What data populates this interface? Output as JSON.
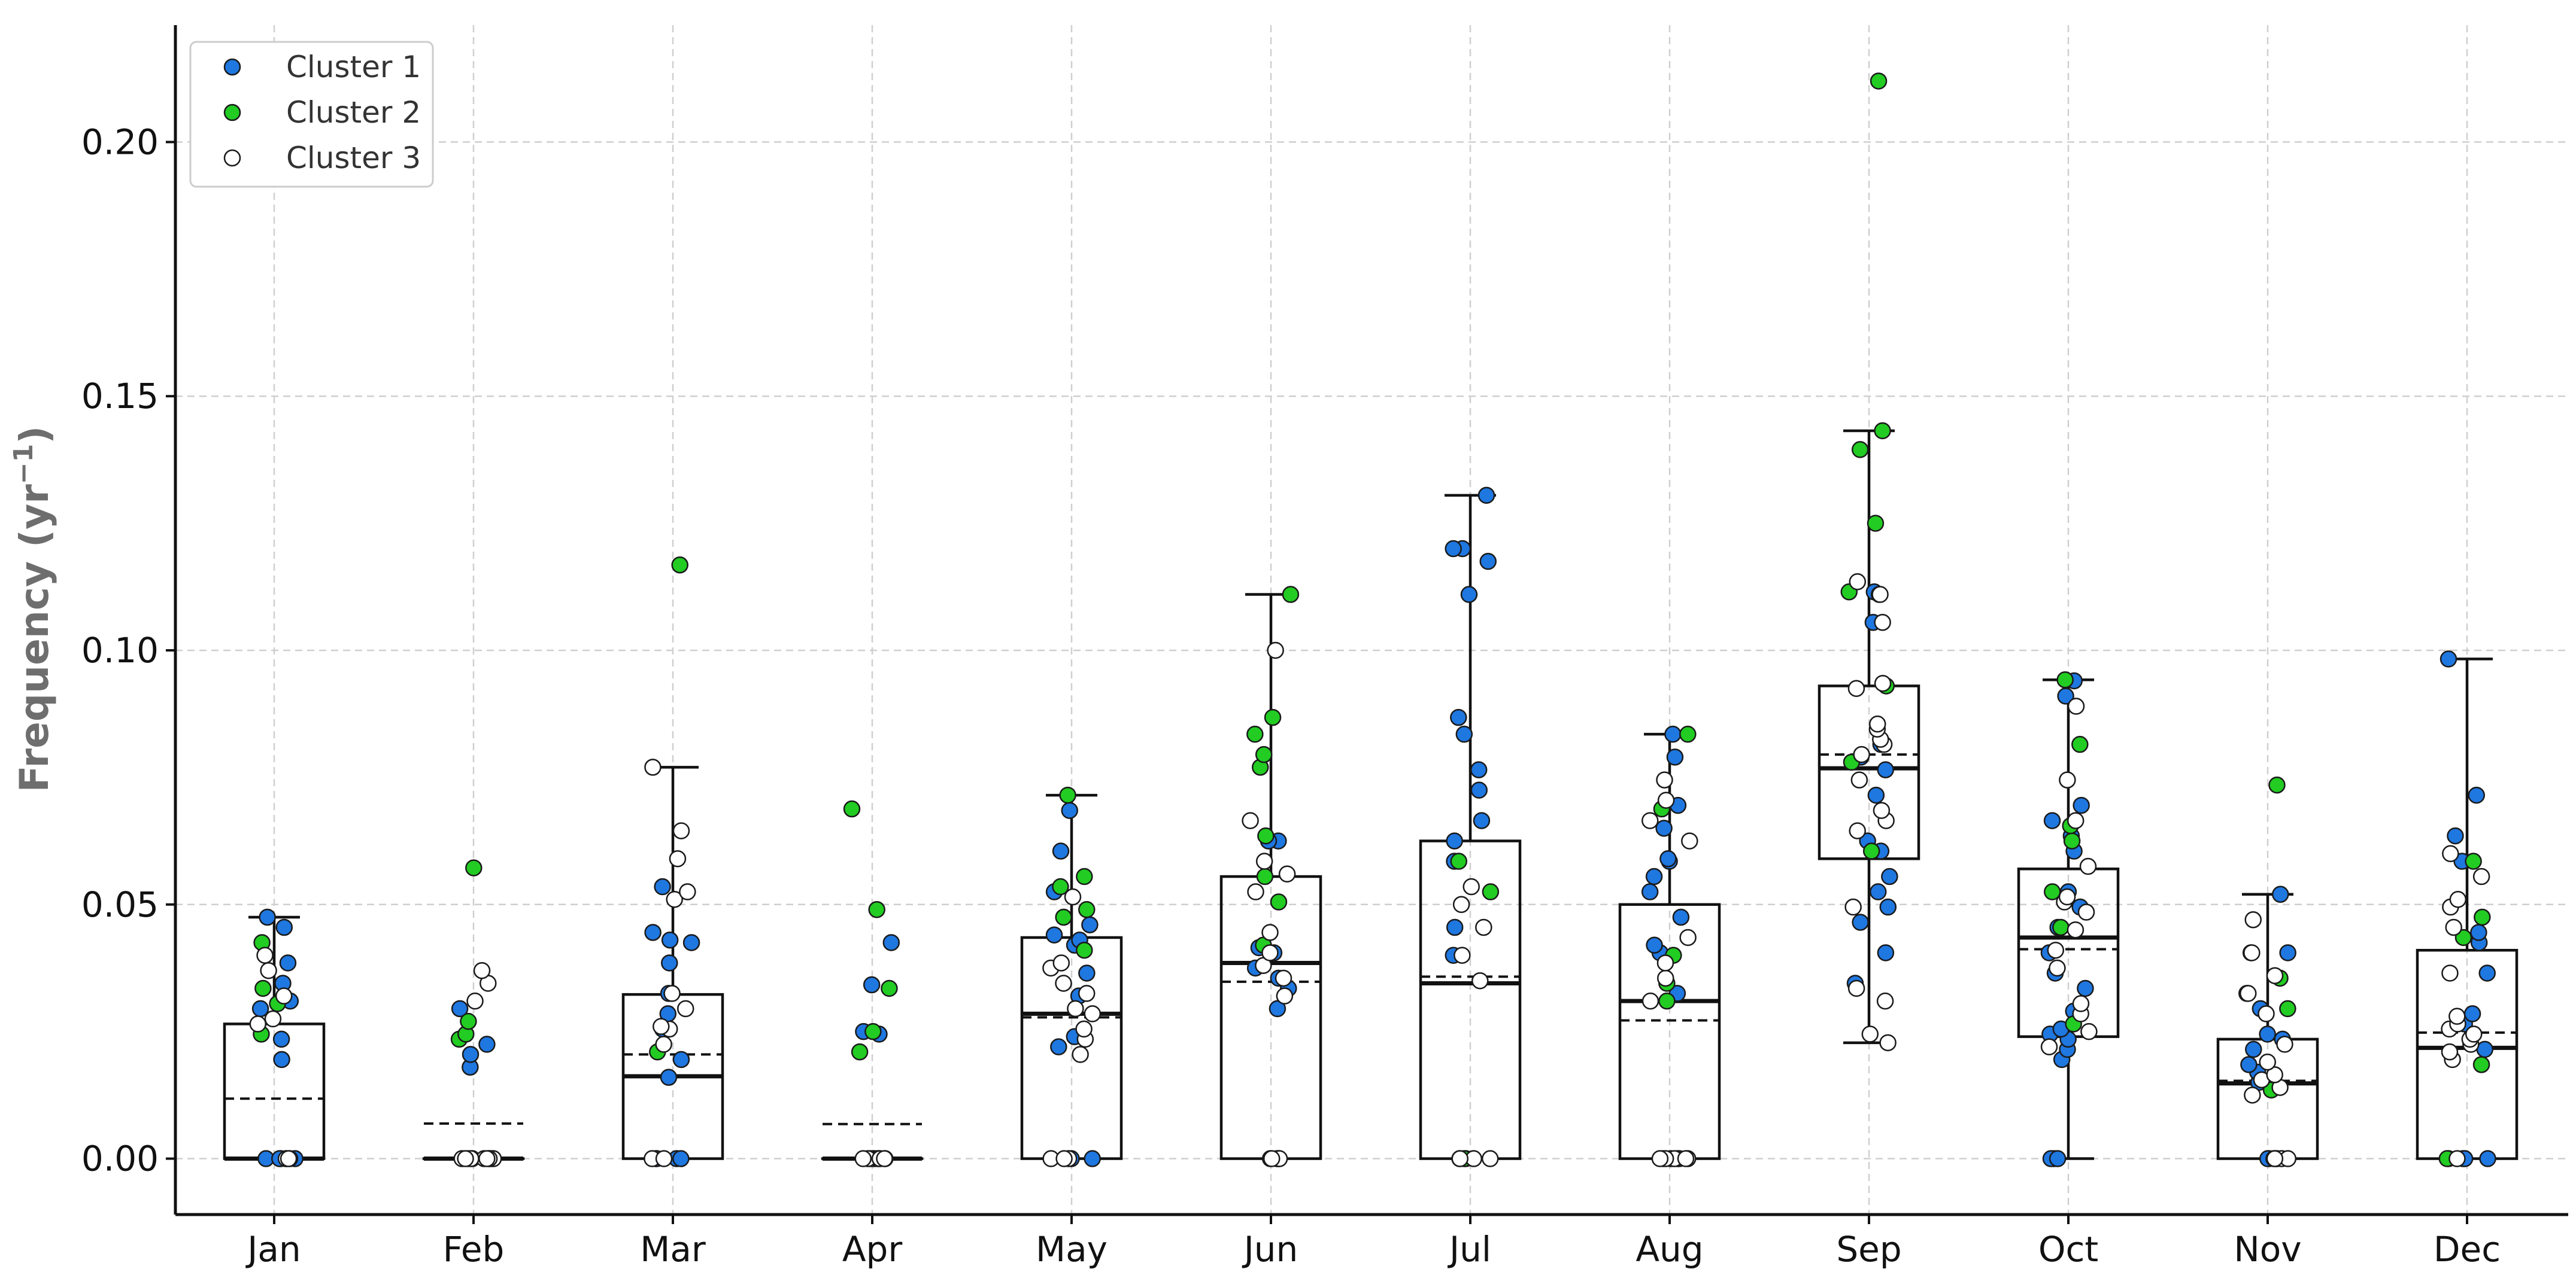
{
  "chart_data": {
    "type": "box",
    "ylabel": "Frequency (yr",
    "ylabel_sup": "−1",
    "ylabel_close": ")",
    "ylim": [
      -0.011,
      0.223
    ],
    "yticks": [
      0.0,
      0.05,
      0.1,
      0.15,
      0.2
    ],
    "ytick_labels": [
      "0.00",
      "0.05",
      "0.10",
      "0.15",
      "0.20"
    ],
    "grid": true,
    "legend_position": "top-left",
    "categories": [
      "Jan",
      "Feb",
      "Mar",
      "Apr",
      "May",
      "Jun",
      "Jul",
      "Aug",
      "Sep",
      "Oct",
      "Nov",
      "Dec"
    ],
    "series": [
      {
        "name": "Cluster 1",
        "color": "#1f77e0"
      },
      {
        "name": "Cluster 2",
        "color": "#22cc22"
      },
      {
        "name": "Cluster 3",
        "color": "#ffffff"
      }
    ],
    "boxes": [
      {
        "q1": 0.0,
        "median": 0.0,
        "q3": 0.0265,
        "mean": 0.0118,
        "whisker_low": 0.0,
        "whisker_high": 0.0475
      },
      {
        "q1": 0.0,
        "median": 0.0,
        "q3": 0.0,
        "mean": 0.0069,
        "whisker_low": 0.0,
        "whisker_high": 0.0
      },
      {
        "q1": 0.0,
        "median": 0.0162,
        "q3": 0.0323,
        "mean": 0.0205,
        "whisker_low": 0.0,
        "whisker_high": 0.077
      },
      {
        "q1": 0.0,
        "median": 0.0,
        "q3": 0.0,
        "mean": 0.0068,
        "whisker_low": 0.0,
        "whisker_high": 0.0
      },
      {
        "q1": 0.0,
        "median": 0.0285,
        "q3": 0.0435,
        "mean": 0.0278,
        "whisker_low": 0.0,
        "whisker_high": 0.0715
      },
      {
        "q1": 0.0,
        "median": 0.0385,
        "q3": 0.0555,
        "mean": 0.0348,
        "whisker_low": 0.0,
        "whisker_high": 0.111
      },
      {
        "q1": 0.0,
        "median": 0.0345,
        "q3": 0.0625,
        "mean": 0.0358,
        "whisker_low": 0.0,
        "whisker_high": 0.1305
      },
      {
        "q1": 0.0,
        "median": 0.031,
        "q3": 0.05,
        "mean": 0.0272,
        "whisker_low": 0.0,
        "whisker_high": 0.0835
      },
      {
        "q1": 0.059,
        "median": 0.0768,
        "q3": 0.093,
        "mean": 0.0795,
        "whisker_low": 0.0228,
        "whisker_high": 0.1432
      },
      {
        "q1": 0.024,
        "median": 0.0435,
        "q3": 0.057,
        "mean": 0.0412,
        "whisker_low": 0.0,
        "whisker_high": 0.0942
      },
      {
        "q1": 0.0,
        "median": 0.0148,
        "q3": 0.0235,
        "mean": 0.0153,
        "whisker_low": 0.0,
        "whisker_high": 0.052
      },
      {
        "q1": 0.0,
        "median": 0.0218,
        "q3": 0.041,
        "mean": 0.0248,
        "whisker_low": 0.0,
        "whisker_high": 0.0983
      }
    ],
    "points": [
      {
        "month": "Jan",
        "cluster": 1,
        "values": [
          0.0,
          0.0,
          0.0,
          0.0,
          0.0195,
          0.0235,
          0.0295,
          0.031,
          0.0345,
          0.0385,
          0.0455,
          0.0475
        ]
      },
      {
        "month": "Jan",
        "cluster": 2,
        "values": [
          0.0,
          0.0245,
          0.0305,
          0.0335,
          0.0425
        ]
      },
      {
        "month": "Jan",
        "cluster": 3,
        "values": [
          0.0,
          0.0,
          0.0,
          0.0265,
          0.0275,
          0.032,
          0.037,
          0.04
        ]
      },
      {
        "month": "Feb",
        "cluster": 1,
        "values": [
          0.0,
          0.0,
          0.0,
          0.018,
          0.0205,
          0.0225,
          0.0295
        ]
      },
      {
        "month": "Feb",
        "cluster": 2,
        "values": [
          0.0235,
          0.0245,
          0.027,
          0.0572
        ]
      },
      {
        "month": "Feb",
        "cluster": 3,
        "values": [
          0.0,
          0.0,
          0.0,
          0.0,
          0.0,
          0.0,
          0.0,
          0.0,
          0.031,
          0.0345,
          0.037
        ]
      },
      {
        "month": "Mar",
        "cluster": 1,
        "values": [
          0.0,
          0.0,
          0.0,
          0.0,
          0.016,
          0.0195,
          0.0255,
          0.0285,
          0.0325,
          0.0385,
          0.0425,
          0.043,
          0.0445,
          0.0535
        ]
      },
      {
        "month": "Mar",
        "cluster": 2,
        "values": [
          0.021,
          0.1168
        ]
      },
      {
        "month": "Mar",
        "cluster": 3,
        "values": [
          0.0,
          0.0,
          0.0225,
          0.0255,
          0.026,
          0.0295,
          0.0325,
          0.051,
          0.0525,
          0.059,
          0.0645,
          0.077
        ]
      },
      {
        "month": "Apr",
        "cluster": 1,
        "values": [
          0.0,
          0.0,
          0.0,
          0.0245,
          0.025,
          0.0342,
          0.0425
        ]
      },
      {
        "month": "Apr",
        "cluster": 2,
        "values": [
          0.021,
          0.025,
          0.0335,
          0.049,
          0.0688
        ]
      },
      {
        "month": "Apr",
        "cluster": 3,
        "values": [
          0.0,
          0.0,
          0.0,
          0.0,
          0.0,
          0.0,
          0.0
        ]
      },
      {
        "month": "May",
        "cluster": 1,
        "values": [
          0.0,
          0.0,
          0.022,
          0.024,
          0.032,
          0.0365,
          0.042,
          0.043,
          0.044,
          0.046,
          0.0525,
          0.0605,
          0.0685
        ]
      },
      {
        "month": "May",
        "cluster": 2,
        "values": [
          0.041,
          0.0475,
          0.049,
          0.0535,
          0.0555,
          0.0715
        ]
      },
      {
        "month": "May",
        "cluster": 3,
        "values": [
          0.0,
          0.0,
          0.0,
          0.0205,
          0.0235,
          0.0255,
          0.0285,
          0.0295,
          0.0325,
          0.0345,
          0.0375,
          0.0385,
          0.0515
        ]
      },
      {
        "month": "Jun",
        "cluster": 1,
        "values": [
          0.0,
          0.0,
          0.0,
          0.0,
          0.0295,
          0.0335,
          0.0355,
          0.0375,
          0.0405,
          0.0415,
          0.0625,
          0.0625
        ]
      },
      {
        "month": "Jun",
        "cluster": 2,
        "values": [
          0.042,
          0.0505,
          0.0555,
          0.0635,
          0.077,
          0.0795,
          0.0835,
          0.0868,
          0.111
        ]
      },
      {
        "month": "Jun",
        "cluster": 3,
        "values": [
          0.0,
          0.0,
          0.032,
          0.0355,
          0.038,
          0.0405,
          0.0445,
          0.0525,
          0.056,
          0.0585,
          0.0665,
          0.1
        ]
      },
      {
        "month": "Jul",
        "cluster": 1,
        "values": [
          0.0,
          0.04,
          0.0455,
          0.0585,
          0.0625,
          0.0665,
          0.0725,
          0.0765,
          0.0835,
          0.0868,
          0.111,
          0.1175,
          0.12,
          0.12,
          0.1305
        ]
      },
      {
        "month": "Jul",
        "cluster": 2,
        "values": [
          0.0,
          0.0525,
          0.0585
        ]
      },
      {
        "month": "Jul",
        "cluster": 3,
        "values": [
          0.0,
          0.0,
          0.0,
          0.0,
          0.035,
          0.04,
          0.0455,
          0.05,
          0.0535
        ]
      },
      {
        "month": "Aug",
        "cluster": 1,
        "values": [
          0.0,
          0.0,
          0.0,
          0.0325,
          0.0405,
          0.042,
          0.0475,
          0.0525,
          0.0555,
          0.0585,
          0.059,
          0.065,
          0.0695,
          0.079,
          0.0835
        ]
      },
      {
        "month": "Aug",
        "cluster": 2,
        "values": [
          0.0,
          0.031,
          0.0345,
          0.04,
          0.0688,
          0.0835
        ]
      },
      {
        "month": "Aug",
        "cluster": 3,
        "values": [
          0.0,
          0.0,
          0.0,
          0.0,
          0.0,
          0.031,
          0.0355,
          0.0385,
          0.0435,
          0.0625,
          0.0665,
          0.0705,
          0.0745
        ]
      },
      {
        "month": "Sep",
        "cluster": 1,
        "values": [
          0.0345,
          0.0405,
          0.0465,
          0.0495,
          0.0525,
          0.0555,
          0.0605,
          0.0625,
          0.0715,
          0.0765,
          0.079,
          0.0815,
          0.1055,
          0.1115
        ]
      },
      {
        "month": "Sep",
        "cluster": 2,
        "values": [
          0.0605,
          0.078,
          0.093,
          0.111,
          0.1115,
          0.125,
          0.1395,
          0.1432,
          0.212
        ]
      },
      {
        "month": "Sep",
        "cluster": 3,
        "values": [
          0.0228,
          0.0245,
          0.031,
          0.0335,
          0.0495,
          0.0645,
          0.0665,
          0.0685,
          0.0745,
          0.0795,
          0.0815,
          0.0825,
          0.0845,
          0.0855,
          0.0925,
          0.0935,
          0.1055,
          0.111,
          0.1135
        ]
      },
      {
        "month": "Oct",
        "cluster": 1,
        "values": [
          0.0,
          0.0,
          0.0,
          0.0195,
          0.0215,
          0.0235,
          0.0245,
          0.0255,
          0.029,
          0.0335,
          0.0365,
          0.0405,
          0.0455,
          0.0495,
          0.0525,
          0.0605,
          0.0635,
          0.0665,
          0.0695,
          0.091,
          0.094
        ]
      },
      {
        "month": "Oct",
        "cluster": 2,
        "values": [
          0.0265,
          0.0455,
          0.0525,
          0.0625,
          0.0655,
          0.0815,
          0.0942
        ]
      },
      {
        "month": "Oct",
        "cluster": 3,
        "values": [
          0.022,
          0.025,
          0.0285,
          0.0305,
          0.0375,
          0.041,
          0.045,
          0.0485,
          0.0505,
          0.0515,
          0.0575,
          0.0665,
          0.0745,
          0.089
        ]
      },
      {
        "month": "Nov",
        "cluster": 1,
        "values": [
          0.0,
          0.0,
          0.0,
          0.0,
          0.015,
          0.017,
          0.0185,
          0.0215,
          0.0235,
          0.0245,
          0.0295,
          0.0325,
          0.0405,
          0.0405,
          0.052
        ]
      },
      {
        "month": "Nov",
        "cluster": 2,
        "values": [
          0.0135,
          0.0295,
          0.0355,
          0.0735
        ]
      },
      {
        "month": "Nov",
        "cluster": 3,
        "values": [
          0.0,
          0.0,
          0.0,
          0.0,
          0.0125,
          0.014,
          0.0155,
          0.0165,
          0.019,
          0.0225,
          0.0285,
          0.0325,
          0.036,
          0.0405,
          0.047
        ]
      },
      {
        "month": "Dec",
        "cluster": 1,
        "values": [
          0.0,
          0.0,
          0.0,
          0.0,
          0.0215,
          0.0265,
          0.0285,
          0.0365,
          0.0425,
          0.0445,
          0.0585,
          0.0635,
          0.0715,
          0.0983
        ]
      },
      {
        "month": "Dec",
        "cluster": 2,
        "values": [
          0.0,
          0.0185,
          0.0435,
          0.0475,
          0.0585
        ]
      },
      {
        "month": "Dec",
        "cluster": 3,
        "values": [
          0.0,
          0.0195,
          0.021,
          0.0225,
          0.0235,
          0.0245,
          0.0255,
          0.0265,
          0.028,
          0.0365,
          0.0455,
          0.0495,
          0.051,
          0.0555,
          0.06
        ]
      }
    ]
  }
}
